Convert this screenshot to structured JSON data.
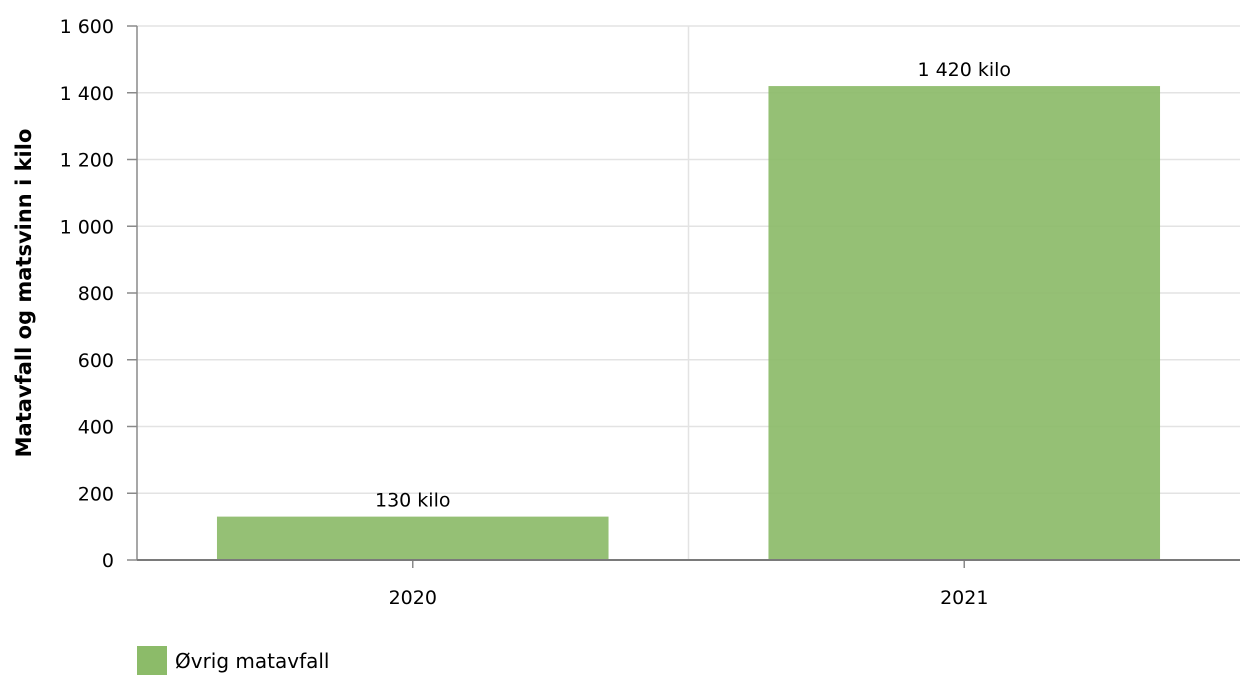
{
  "chart_data": {
    "type": "bar",
    "categories": [
      "2020",
      "2021"
    ],
    "series": [
      {
        "name": "Øvrig matavfall",
        "values": [
          130,
          1420
        ],
        "color": "#8cbb69"
      }
    ],
    "data_labels": [
      "130 kilo",
      "1 420 kilo"
    ],
    "title": "",
    "xlabel": "",
    "ylabel": "Matavfall og matsvinn i kilo",
    "ylim": [
      0,
      1600
    ],
    "yticks": [
      0,
      200,
      400,
      600,
      800,
      1000,
      1200,
      1400,
      1600
    ],
    "ytick_labels": [
      "0",
      "200",
      "400",
      "600",
      "800",
      "1 000",
      "1 200",
      "1 400",
      "1 600"
    ],
    "grid": true,
    "legend_position": "bottom-left"
  }
}
